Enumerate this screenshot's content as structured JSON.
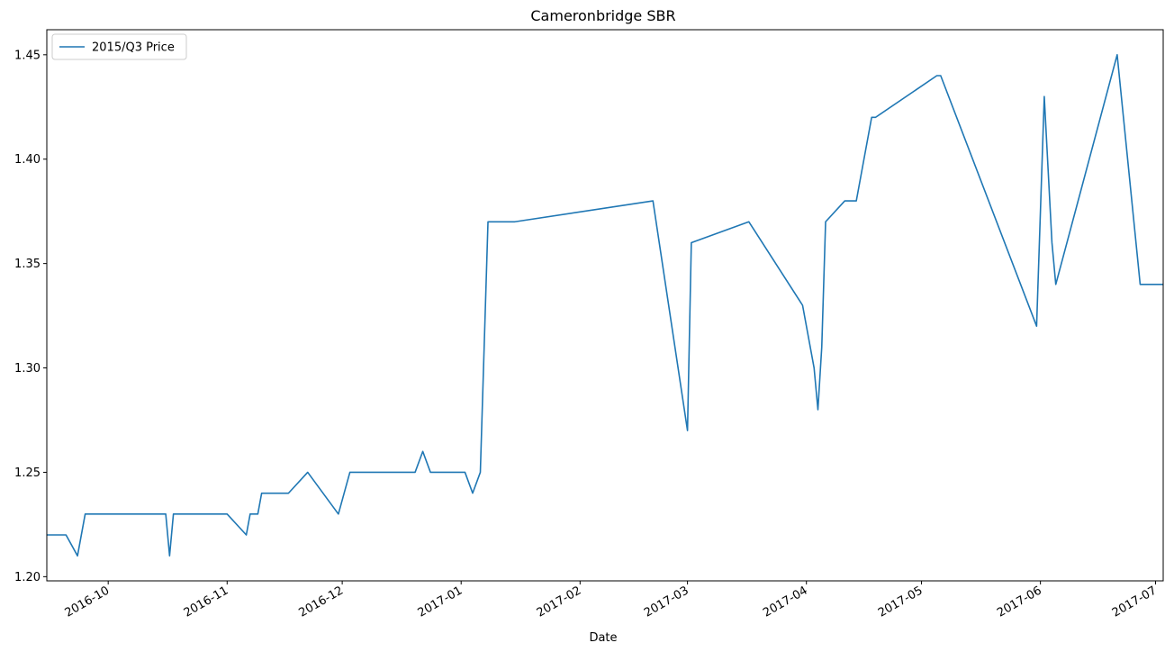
{
  "chart_data": {
    "type": "line",
    "title": "Cameronbridge SBR",
    "xlabel": "Date",
    "ylabel": "",
    "x_axis_type": "date",
    "xlim": [
      "2016-09-15",
      "2017-07-03"
    ],
    "ylim": [
      1.198,
      1.462
    ],
    "x_ticks": [
      "2016-10-01",
      "2016-11-01",
      "2016-12-01",
      "2017-01-01",
      "2017-02-01",
      "2017-03-01",
      "2017-04-01",
      "2017-05-01",
      "2017-06-01",
      "2017-07-01"
    ],
    "x_tick_labels": [
      "2016-10",
      "2016-11",
      "2016-12",
      "2017-01",
      "2017-02",
      "2017-03",
      "2017-04",
      "2017-05",
      "2017-06",
      "2017-07"
    ],
    "y_ticks": [
      1.2,
      1.25,
      1.3,
      1.35,
      1.4,
      1.45
    ],
    "y_tick_labels": [
      "1.20",
      "1.25",
      "1.30",
      "1.35",
      "1.40",
      "1.45"
    ],
    "grid": false,
    "legend_position": "top-left",
    "colors": {
      "series": "#1f77b4"
    },
    "series": [
      {
        "name": "2015/Q3 Price",
        "points": [
          [
            "2016-09-15",
            1.22
          ],
          [
            "2016-09-20",
            1.22
          ],
          [
            "2016-09-23",
            1.21
          ],
          [
            "2016-09-25",
            1.23
          ],
          [
            "2016-10-16",
            1.23
          ],
          [
            "2016-10-17",
            1.21
          ],
          [
            "2016-10-18",
            1.23
          ],
          [
            "2016-11-01",
            1.23
          ],
          [
            "2016-11-06",
            1.22
          ],
          [
            "2016-11-07",
            1.23
          ],
          [
            "2016-11-09",
            1.23
          ],
          [
            "2016-11-10",
            1.24
          ],
          [
            "2016-11-17",
            1.24
          ],
          [
            "2016-11-22",
            1.25
          ],
          [
            "2016-11-30",
            1.23
          ],
          [
            "2016-12-03",
            1.25
          ],
          [
            "2016-12-20",
            1.25
          ],
          [
            "2016-12-22",
            1.26
          ],
          [
            "2016-12-24",
            1.25
          ],
          [
            "2017-01-02",
            1.25
          ],
          [
            "2017-01-04",
            1.24
          ],
          [
            "2017-01-06",
            1.25
          ],
          [
            "2017-01-07",
            1.31
          ],
          [
            "2017-01-08",
            1.37
          ],
          [
            "2017-01-15",
            1.37
          ],
          [
            "2017-02-20",
            1.38
          ],
          [
            "2017-03-01",
            1.27
          ],
          [
            "2017-03-02",
            1.36
          ],
          [
            "2017-03-17",
            1.37
          ],
          [
            "2017-03-31",
            1.33
          ],
          [
            "2017-04-03",
            1.3
          ],
          [
            "2017-04-04",
            1.28
          ],
          [
            "2017-04-05",
            1.31
          ],
          [
            "2017-04-06",
            1.37
          ],
          [
            "2017-04-11",
            1.38
          ],
          [
            "2017-04-14",
            1.38
          ],
          [
            "2017-04-18",
            1.42
          ],
          [
            "2017-04-19",
            1.42
          ],
          [
            "2017-05-05",
            1.44
          ],
          [
            "2017-05-06",
            1.44
          ],
          [
            "2017-05-31",
            1.32
          ],
          [
            "2017-06-02",
            1.43
          ],
          [
            "2017-06-04",
            1.36
          ],
          [
            "2017-06-05",
            1.34
          ],
          [
            "2017-06-21",
            1.45
          ],
          [
            "2017-06-27",
            1.34
          ],
          [
            "2017-07-03",
            1.34
          ]
        ]
      }
    ]
  }
}
